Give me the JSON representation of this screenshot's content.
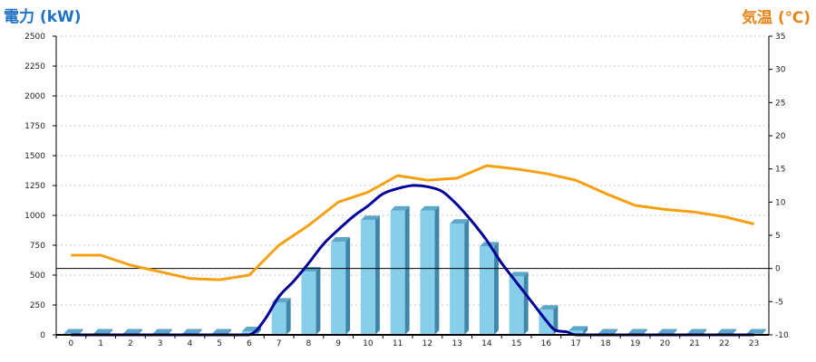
{
  "chart_data": {
    "type": "bar+line",
    "left_axis_title": "電力 (kW)",
    "right_axis_title": "気温 (℃)",
    "categories": [
      "0",
      "1",
      "2",
      "3",
      "4",
      "5",
      "6",
      "7",
      "8",
      "9",
      "10",
      "11",
      "12",
      "13",
      "14",
      "15",
      "16",
      "17",
      "18",
      "19",
      "20",
      "21",
      "22",
      "23"
    ],
    "y_left": {
      "min": 0,
      "max": 2500,
      "ticks": [
        "0",
        "250",
        "500",
        "750",
        "1000",
        "1250",
        "1500",
        "1750",
        "2000",
        "2250",
        "2500"
      ]
    },
    "y_right": {
      "min": -10,
      "max": 35,
      "ticks": [
        "-10",
        "-5",
        "0",
        "5",
        "10",
        "15",
        "20",
        "25",
        "30",
        "35"
      ]
    },
    "bars": {
      "values": [
        0,
        0,
        0,
        0,
        0,
        0,
        30,
        270,
        530,
        780,
        960,
        1040,
        1040,
        930,
        740,
        490,
        210,
        35,
        0,
        0,
        0,
        0,
        0,
        0
      ],
      "color": "#87ceeb"
    },
    "power_line": {
      "color": "#000099",
      "x": [
        0,
        1,
        2,
        3,
        4,
        5,
        6,
        6.5,
        7,
        7.5,
        8,
        8.5,
        9,
        9.5,
        10,
        10.5,
        11,
        11.5,
        12,
        12.5,
        13,
        13.5,
        14,
        14.5,
        15,
        15.5,
        16,
        16.3,
        16.7,
        17,
        18,
        19,
        20,
        21,
        22,
        23
      ],
      "values": [
        0,
        0,
        0,
        0,
        0,
        0,
        0,
        120,
        320,
        450,
        600,
        760,
        880,
        990,
        1080,
        1180,
        1225,
        1250,
        1240,
        1200,
        1090,
        950,
        790,
        600,
        440,
        280,
        120,
        40,
        25,
        0,
        0,
        0,
        0,
        0,
        0,
        0
      ]
    },
    "temperature_line": {
      "color": "#f5a00f",
      "values": [
        2.0,
        2.0,
        0.5,
        -0.5,
        -1.5,
        -1.7,
        -1.0,
        3.5,
        6.5,
        10.0,
        11.5,
        14.0,
        13.3,
        13.6,
        15.5,
        15.0,
        14.3,
        13.3,
        11.3,
        9.5,
        8.9,
        8.5,
        7.8,
        6.7
      ]
    },
    "reference_line": {
      "value": 0,
      "axis": "right"
    },
    "grid": true
  }
}
